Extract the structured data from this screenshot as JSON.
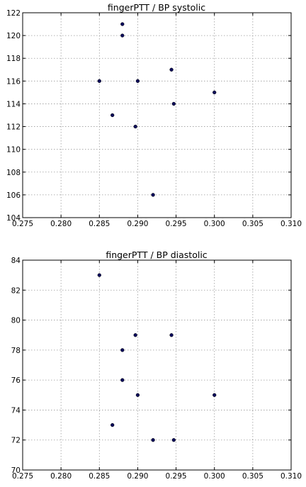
{
  "chart_data": [
    {
      "type": "scatter",
      "title": "fingerPTT / BP systolic",
      "xlabel": "",
      "ylabel": "",
      "xlim": [
        0.275,
        0.31
      ],
      "ylim": [
        104,
        122
      ],
      "xticks": [
        0.275,
        0.28,
        0.285,
        0.29,
        0.295,
        0.3,
        0.305,
        0.31
      ],
      "xtick_labels": [
        "0.275",
        "0.280",
        "0.285",
        "0.290",
        "0.295",
        "0.300",
        "0.305",
        "0.310"
      ],
      "yticks": [
        104,
        106,
        108,
        110,
        112,
        114,
        116,
        118,
        120,
        122
      ],
      "ytick_labels": [
        "104",
        "106",
        "108",
        "110",
        "112",
        "114",
        "116",
        "118",
        "120",
        "122"
      ],
      "grid": true,
      "marker_color": "#0c0c5c",
      "points": [
        {
          "x": 0.288,
          "y": 121
        },
        {
          "x": 0.288,
          "y": 120
        },
        {
          "x": 0.2944,
          "y": 117
        },
        {
          "x": 0.285,
          "y": 116
        },
        {
          "x": 0.29,
          "y": 116
        },
        {
          "x": 0.3,
          "y": 115
        },
        {
          "x": 0.2947,
          "y": 114
        },
        {
          "x": 0.2867,
          "y": 113
        },
        {
          "x": 0.2897,
          "y": 112
        },
        {
          "x": 0.292,
          "y": 106
        }
      ]
    },
    {
      "type": "scatter",
      "title": "fingerPTT / BP diastolic",
      "xlabel": "",
      "ylabel": "",
      "xlim": [
        0.275,
        0.31
      ],
      "ylim": [
        70,
        84
      ],
      "xticks": [
        0.275,
        0.28,
        0.285,
        0.29,
        0.295,
        0.3,
        0.305,
        0.31
      ],
      "xtick_labels": [
        "0.275",
        "0.280",
        "0.285",
        "0.290",
        "0.295",
        "0.300",
        "0.305",
        "0.310"
      ],
      "yticks": [
        70,
        72,
        74,
        76,
        78,
        80,
        82,
        84
      ],
      "ytick_labels": [
        "70",
        "72",
        "74",
        "76",
        "78",
        "80",
        "82",
        "84"
      ],
      "grid": true,
      "marker_color": "#0c0c5c",
      "points": [
        {
          "x": 0.285,
          "y": 83
        },
        {
          "x": 0.2897,
          "y": 79
        },
        {
          "x": 0.2944,
          "y": 79
        },
        {
          "x": 0.288,
          "y": 78
        },
        {
          "x": 0.288,
          "y": 76
        },
        {
          "x": 0.29,
          "y": 75
        },
        {
          "x": 0.3,
          "y": 75
        },
        {
          "x": 0.2867,
          "y": 73
        },
        {
          "x": 0.292,
          "y": 72
        },
        {
          "x": 0.2947,
          "y": 72
        }
      ]
    }
  ]
}
